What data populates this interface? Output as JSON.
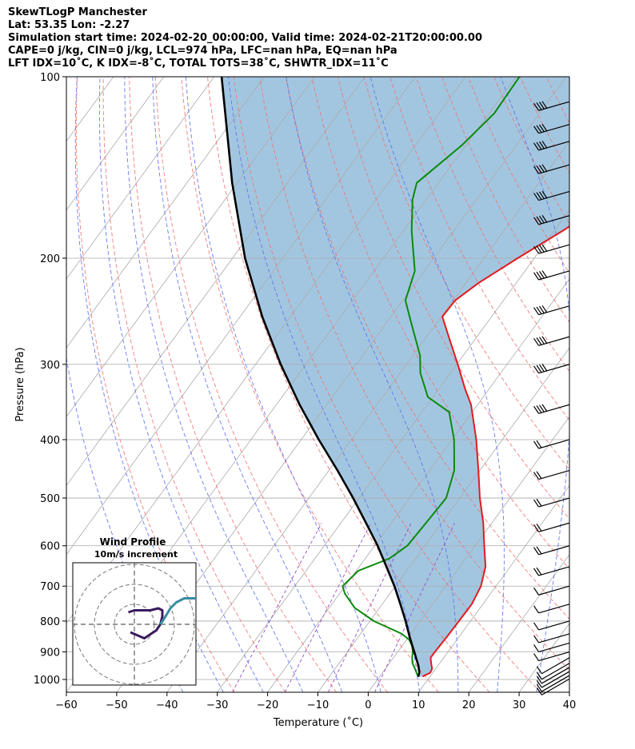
{
  "header": {
    "line1": "SkewTLogP Manchester",
    "line2": "Lat: 53.35   Lon: -2.27",
    "line3": "Simulation start time: 2024-02-20_00:00:00, Valid time: 2024-02-21T20:00:00.00",
    "line4": "CAPE=0 j/kg, CIN=0 j/kg, LCL=974 hPa, LFC=nan hPa, EQ=nan hPa",
    "line5": "LFT IDX=10˚C, K IDX=-8˚C, TOTAL TOTS=38˚C, SHWTR_IDX=11˚C"
  },
  "colors": {
    "temperature": "#e41a1c",
    "dewpoint": "#0a8a0a",
    "parcel": "#000000",
    "cape_fill": "#a3c6e0",
    "dry_adiabat": "#f07070",
    "moist_adiabat": "#5a6ef0",
    "mixing_ratio": "#9a4fc4",
    "isotherm": "#aaaaaa",
    "hodo_inner": "#3a1a5e",
    "hodo_outer": "#3a8aa0"
  },
  "inset": {
    "title": "Wind Profile",
    "subtitle": "10m/s increment"
  },
  "chart_data": {
    "type": "line",
    "title": "SkewTLogP Manchester",
    "xlabel": "Temperature (˚C)",
    "ylabel": "Pressure (hPa)",
    "xlim": [
      -60,
      40
    ],
    "ylim": [
      1050,
      100
    ],
    "log_y": true,
    "skew": true,
    "x_ticks": [
      -60,
      -50,
      -40,
      -30,
      -20,
      -10,
      0,
      10,
      20,
      30,
      40
    ],
    "y_ticks": [
      100,
      200,
      300,
      400,
      500,
      600,
      700,
      800,
      900,
      1000
    ],
    "grid": true,
    "series": [
      {
        "name": "temperature",
        "points": [
          [
            989,
            8.5
          ],
          [
            975,
            9.5
          ],
          [
            960,
            9.3
          ],
          [
            940,
            8.3
          ],
          [
            920,
            7.4
          ],
          [
            900,
            7.4
          ],
          [
            850,
            7.6
          ],
          [
            800,
            7.7
          ],
          [
            750,
            7.8
          ],
          [
            700,
            7.0
          ],
          [
            650,
            5.1
          ],
          [
            600,
            1.8
          ],
          [
            550,
            -1.7
          ],
          [
            500,
            -6.0
          ],
          [
            450,
            -10.3
          ],
          [
            400,
            -15.2
          ],
          [
            350,
            -21.3
          ],
          [
            330,
            -24.7
          ],
          [
            300,
            -29.8
          ],
          [
            270,
            -35.6
          ],
          [
            250,
            -39.8
          ],
          [
            235,
            -39.6
          ],
          [
            220,
            -37.5
          ],
          [
            200,
            -33.3
          ],
          [
            180,
            -28.3
          ],
          [
            150,
            -21.0
          ],
          [
            130,
            -16.2
          ],
          [
            115,
            -13.0
          ],
          [
            100,
            -11.8
          ]
        ]
      },
      {
        "name": "dewpoint",
        "points": [
          [
            985,
            7.4
          ],
          [
            960,
            5.9
          ],
          [
            940,
            4.6
          ],
          [
            920,
            3.7
          ],
          [
            900,
            3.0
          ],
          [
            880,
            2.0
          ],
          [
            860,
            0.6
          ],
          [
            840,
            -1.8
          ],
          [
            800,
            -9.2
          ],
          [
            760,
            -15.0
          ],
          [
            720,
            -19.0
          ],
          [
            700,
            -20.5
          ],
          [
            660,
            -19.6
          ],
          [
            630,
            -15.2
          ],
          [
            600,
            -13.5
          ],
          [
            550,
            -13.1
          ],
          [
            500,
            -12.7
          ],
          [
            450,
            -15.1
          ],
          [
            400,
            -19.6
          ],
          [
            360,
            -24.6
          ],
          [
            340,
            -31.0
          ],
          [
            310,
            -36.0
          ],
          [
            290,
            -38.6
          ],
          [
            255,
            -45.3
          ],
          [
            235,
            -49.5
          ],
          [
            210,
            -51.9
          ],
          [
            180,
            -58.4
          ],
          [
            160,
            -62.7
          ],
          [
            150,
            -64.3
          ],
          [
            130,
            -60.8
          ],
          [
            115,
            -59.0
          ],
          [
            100,
            -59.3
          ]
        ]
      },
      {
        "name": "parcel",
        "points": [
          [
            990,
            7.7
          ],
          [
            974,
            7.3
          ],
          [
            950,
            6.2
          ],
          [
            900,
            3.3
          ],
          [
            850,
            0.2
          ],
          [
            800,
            -2.9
          ],
          [
            750,
            -6.4
          ],
          [
            700,
            -10.2
          ],
          [
            650,
            -14.6
          ],
          [
            600,
            -19.4
          ],
          [
            550,
            -25.0
          ],
          [
            500,
            -31.2
          ],
          [
            450,
            -38.3
          ],
          [
            400,
            -46.5
          ],
          [
            350,
            -55.4
          ],
          [
            300,
            -65.0
          ],
          [
            250,
            -75.6
          ],
          [
            200,
            -87.5
          ],
          [
            150,
            -101.0
          ],
          [
            100,
            -118.5
          ]
        ]
      }
    ],
    "wind_barbs_pressure": [
      998,
      985,
      970,
      955,
      940,
      920,
      900,
      870,
      840,
      800,
      750,
      700,
      650,
      600,
      550,
      500,
      450,
      400,
      350,
      300,
      270,
      240,
      210,
      190,
      170,
      155,
      140,
      128,
      120,
      110
    ],
    "hodograph": {
      "rings_ms": [
        10,
        20,
        30
      ],
      "inner_uv": [
        [
          -2,
          -4
        ],
        [
          5,
          -7
        ],
        [
          8,
          -5
        ],
        [
          11,
          -3
        ],
        [
          13,
          0
        ],
        [
          14,
          4
        ],
        [
          14,
          7
        ],
        [
          12,
          8
        ],
        [
          8,
          7
        ],
        [
          4,
          7
        ],
        [
          0,
          7
        ],
        [
          -3,
          6
        ]
      ],
      "outer_uv": [
        [
          13,
          0
        ],
        [
          15,
          3
        ],
        [
          18,
          8
        ],
        [
          21,
          11
        ],
        [
          25,
          13
        ],
        [
          30,
          13
        ],
        [
          34,
          12
        ]
      ]
    }
  }
}
